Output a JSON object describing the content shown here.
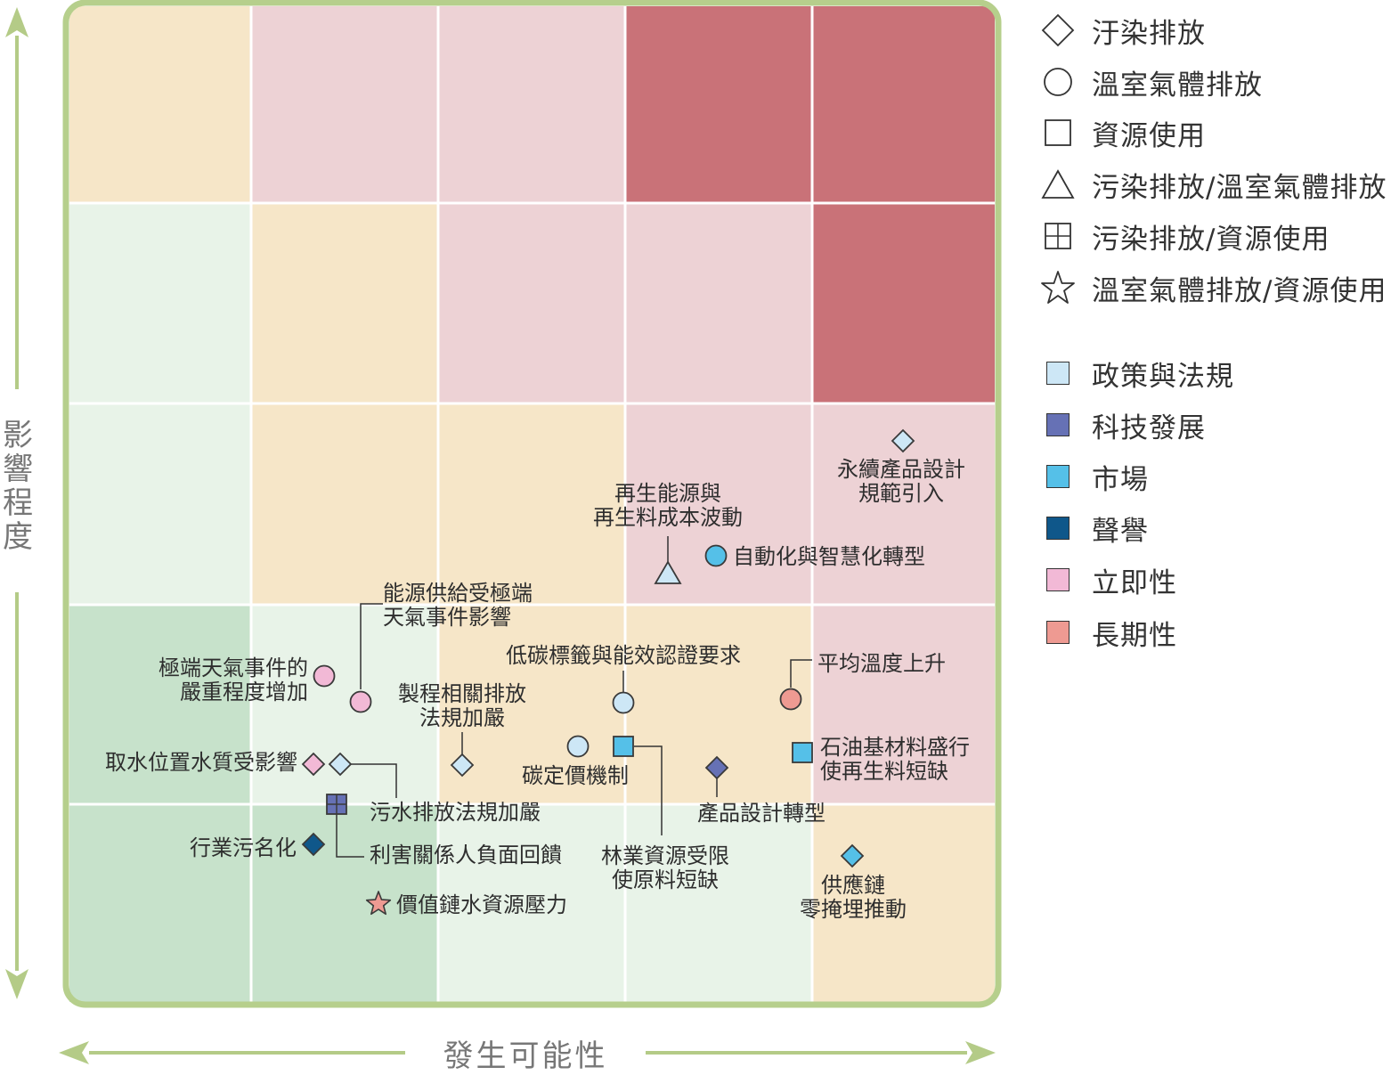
{
  "axes": {
    "y_label": "影響程度",
    "x_label": "發生可能性"
  },
  "colors": {
    "green_dark": "#c7e2cb",
    "green_light": "#e8f3e8",
    "beige": "#f6e6c8",
    "pink_light": "#edd2d5",
    "red": "#c97278",
    "frame": "#b6cf8c",
    "policy": "#cde7f6",
    "tech": "#6671b5",
    "market": "#55c0e8",
    "reputation": "#0f578a",
    "acute": "#f2b9d6",
    "chronic": "#ee9a92"
  },
  "grid": [
    [
      "beige",
      "pink_light",
      "pink_light",
      "red",
      "red"
    ],
    [
      "green_light",
      "beige",
      "pink_light",
      "pink_light",
      "red"
    ],
    [
      "green_light",
      "beige",
      "beige",
      "pink_light",
      "pink_light"
    ],
    [
      "green_dark",
      "green_light",
      "beige",
      "beige",
      "pink_light"
    ],
    [
      "green_dark",
      "green_dark",
      "green_light",
      "green_light",
      "beige"
    ]
  ],
  "legend": {
    "shapes": [
      {
        "icon": "diamond-icon",
        "label": "汙染排放"
      },
      {
        "icon": "circle-icon",
        "label": "溫室氣體排放"
      },
      {
        "icon": "square-icon",
        "label": "資源使用"
      },
      {
        "icon": "triangle-icon",
        "label": "污染排放/溫室氣體排放"
      },
      {
        "icon": "grid-square-icon",
        "label": "污染排放/資源使用"
      },
      {
        "icon": "star-icon",
        "label": "溫室氣體排放/資源使用"
      }
    ],
    "categories": [
      {
        "color": "policy",
        "label": "政策與法規"
      },
      {
        "color": "tech",
        "label": "科技發展"
      },
      {
        "color": "market",
        "label": "市場"
      },
      {
        "color": "reputation",
        "label": "聲譽"
      },
      {
        "color": "acute",
        "label": "立即性"
      },
      {
        "color": "chronic",
        "label": "長期性"
      }
    ]
  },
  "risks": [
    {
      "id": "sustainable-design",
      "lines": [
        "永續產品設計",
        "規範引入"
      ],
      "shape": "diamond",
      "color": "policy",
      "likelihood": 4.5,
      "impact": 2.8
    },
    {
      "id": "renewable-cost",
      "lines": [
        "再生能源與",
        "再生料成本波動"
      ],
      "shape": "triangle",
      "color": "policy",
      "likelihood": 3.25,
      "impact": 2.2
    },
    {
      "id": "automation",
      "lines": [
        "自動化與智慧化轉型"
      ],
      "shape": "circle",
      "color": "market",
      "likelihood": 3.5,
      "impact": 2.25
    },
    {
      "id": "energy-supply",
      "lines": [
        "能源供給受極端",
        "天氣事件影響"
      ],
      "shape": "circle",
      "color": "acute",
      "likelihood": 1.55,
      "impact": 1.6
    },
    {
      "id": "extreme-weather",
      "lines": [
        "極端天氣事件的",
        "嚴重程度增加"
      ],
      "shape": "circle",
      "color": "acute",
      "likelihood": 1.35,
      "impact": 1.7
    },
    {
      "id": "low-carbon-label",
      "lines": [
        "低碳標籤與能效認證要求"
      ],
      "shape": "circle",
      "color": "policy",
      "likelihood": 3.0,
      "impact": 1.6
    },
    {
      "id": "avg-temp",
      "lines": [
        "平均溫度上升"
      ],
      "shape": "circle",
      "color": "chronic",
      "likelihood": 3.85,
      "impact": 1.6
    },
    {
      "id": "process-emission",
      "lines": [
        "製程相關排放",
        "法規加嚴"
      ],
      "shape": "diamond",
      "color": "policy",
      "likelihood": 2.05,
      "impact": 1.2
    },
    {
      "id": "carbon-pricing",
      "lines": [
        "碳定價機制"
      ],
      "shape": "circle",
      "color": "policy",
      "likelihood": 2.75,
      "impact": 1.3
    },
    {
      "id": "forest-resource",
      "lines": [
        "林業資源受限",
        "使原料短缺"
      ],
      "shape": "square",
      "color": "market",
      "likelihood": 3.0,
      "impact": 1.3
    },
    {
      "id": "product-design",
      "lines": [
        "產品設計轉型"
      ],
      "shape": "diamond",
      "color": "tech",
      "likelihood": 3.5,
      "impact": 1.2
    },
    {
      "id": "petro-material",
      "lines": [
        "石油基材料盛行",
        "使再生料短缺"
      ],
      "shape": "square",
      "color": "market",
      "likelihood": 4.0,
      "impact": 1.25
    },
    {
      "id": "water-quality",
      "lines": [
        "取水位置水質受影響"
      ],
      "shape": "diamond",
      "color": "acute",
      "likelihood": 1.3,
      "impact": 1.2
    },
    {
      "id": "wastewater",
      "lines": [
        "污水排放法規加嚴"
      ],
      "shape": "diamond",
      "color": "policy",
      "likelihood": 1.45,
      "impact": 1.2
    },
    {
      "id": "stakeholder",
      "lines": [
        "利害關係人負面回饋"
      ],
      "shape": "grid-square",
      "color": "tech",
      "likelihood": 1.45,
      "impact": 1.0
    },
    {
      "id": "stigma",
      "lines": [
        "行業污名化"
      ],
      "shape": "diamond",
      "color": "reputation",
      "likelihood": 1.35,
      "impact": 0.8
    },
    {
      "id": "water-pressure",
      "lines": [
        "價值鏈水資源壓力"
      ],
      "shape": "star",
      "color": "chronic",
      "likelihood": 1.7,
      "impact": 0.55
    },
    {
      "id": "net-zero",
      "lines": [
        "供應鏈",
        "零掩埋推動"
      ],
      "shape": "diamond",
      "color": "market",
      "likelihood": 4.2,
      "impact": 0.75
    }
  ]
}
